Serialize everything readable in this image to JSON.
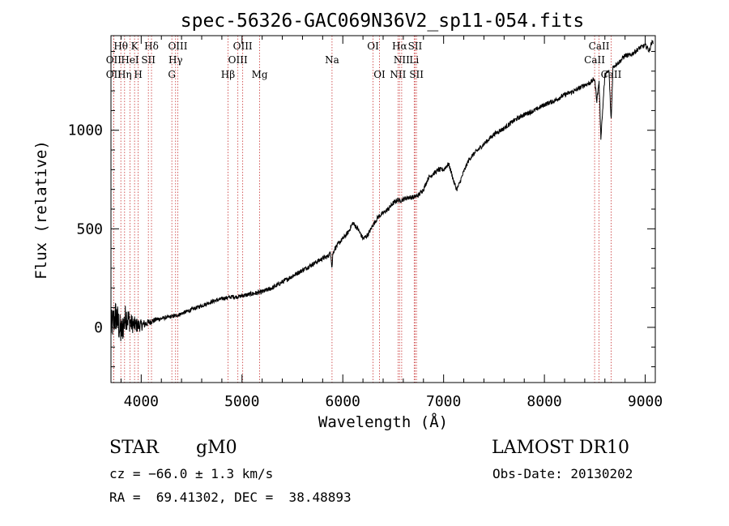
{
  "chart_data": {
    "type": "line",
    "title": "spec-56326-GAC069N36V2_sp11-054.fits",
    "xlabel": "Wavelength (Å)",
    "ylabel": "Flux (relative)",
    "xlim": [
      3700,
      9100
    ],
    "ylim": [
      -280,
      1480
    ],
    "x_ticks": [
      4000,
      5000,
      6000,
      7000,
      8000,
      9000
    ],
    "y_ticks": [
      0,
      500,
      1000
    ],
    "grid": false,
    "series": [
      {
        "x": [
          3700,
          3750,
          3800,
          3850,
          3900,
          3950,
          4000,
          4050,
          4100,
          4150,
          4200,
          4250,
          4300,
          4350,
          4400,
          4450,
          4500,
          4600,
          4700,
          4800,
          4850,
          4900,
          4950,
          5000,
          5050,
          5100,
          5150,
          5200,
          5250,
          5300,
          5400,
          5500,
          5600,
          5700,
          5800,
          5850,
          5880,
          5893,
          5900,
          5920,
          5950,
          6000,
          6050,
          6100,
          6150,
          6200,
          6250,
          6300,
          6350,
          6400,
          6450,
          6500,
          6550,
          6560,
          6600,
          6650,
          6700,
          6750,
          6800,
          6850,
          6900,
          6950,
          7000,
          7050,
          7080,
          7100,
          7130,
          7150,
          7200,
          7250,
          7300,
          7400,
          7500,
          7600,
          7700,
          7800,
          7900,
          8000,
          8100,
          8200,
          8300,
          8400,
          8450,
          8498,
          8520,
          8542,
          8560,
          8600,
          8640,
          8662,
          8680,
          8700,
          8750,
          8800,
          8850,
          8900,
          8950,
          9000,
          9020,
          9040,
          9060,
          9080
        ],
        "y": [
          0,
          60,
          -30,
          60,
          20,
          10,
          10,
          20,
          30,
          40,
          45,
          50,
          55,
          60,
          70,
          80,
          90,
          110,
          130,
          145,
          150,
          155,
          155,
          160,
          165,
          170,
          175,
          180,
          190,
          200,
          230,
          260,
          290,
          320,
          350,
          360,
          380,
          300,
          370,
          400,
          420,
          450,
          480,
          530,
          500,
          450,
          470,
          520,
          560,
          580,
          600,
          630,
          650,
          640,
          650,
          660,
          660,
          670,
          700,
          760,
          780,
          800,
          800,
          830,
          780,
          740,
          700,
          720,
          790,
          850,
          880,
          930,
          980,
          1010,
          1050,
          1080,
          1100,
          1130,
          1150,
          1180,
          1200,
          1230,
          1240,
          1260,
          1150,
          1250,
          960,
          1280,
          1300,
          1050,
          1320,
          1330,
          1350,
          1380,
          1380,
          1400,
          1420,
          1430,
          1420,
          1400,
          1440,
          1450
        ],
        "noise_sigma": [
          80,
          90,
          80,
          70,
          50,
          40,
          30,
          20,
          15,
          12,
          10,
          10,
          10,
          10,
          10,
          10,
          10,
          10,
          10,
          10,
          10,
          10,
          10,
          10,
          12,
          12,
          12,
          12,
          12,
          12,
          12,
          12,
          12,
          12,
          12,
          12,
          12,
          12,
          12,
          12,
          12,
          12,
          12,
          12,
          12,
          12,
          12,
          12,
          12,
          12,
          12,
          12,
          12,
          12,
          12,
          12,
          12,
          12,
          12,
          12,
          12,
          12,
          12,
          12,
          12,
          12,
          12,
          12,
          12,
          12,
          12,
          12,
          12,
          12,
          12,
          12,
          12,
          12,
          12,
          12,
          12,
          12,
          12,
          12,
          12,
          12,
          12,
          12,
          12,
          12,
          12,
          12,
          12,
          12,
          12,
          12,
          12,
          12,
          12,
          12,
          12,
          12
        ]
      }
    ],
    "lines": [
      {
        "wl": 3727,
        "label": "OII",
        "row": 2
      },
      {
        "wl": 3727,
        "label": "OII",
        "row": 3
      },
      {
        "wl": 3798,
        "label": "Hθ",
        "row": 1
      },
      {
        "wl": 3835,
        "label": "Hη",
        "row": 3
      },
      {
        "wl": 3889,
        "label": "HeI",
        "row": 2
      },
      {
        "wl": 3934,
        "label": "K",
        "row": 1
      },
      {
        "wl": 3970,
        "label": "H",
        "row": 3
      },
      {
        "wl": 4071,
        "label": "SII",
        "row": 2
      },
      {
        "wl": 4102,
        "label": "Hδ",
        "row": 1
      },
      {
        "wl": 4304,
        "label": "G",
        "row": 3
      },
      {
        "wl": 4341,
        "label": "Hγ",
        "row": 2
      },
      {
        "wl": 4363,
        "label": "OIII",
        "row": 1
      },
      {
        "wl": 4861,
        "label": "Hβ",
        "row": 3
      },
      {
        "wl": 4959,
        "label": "OIII",
        "row": 2
      },
      {
        "wl": 5007,
        "label": "OIII",
        "row": 1
      },
      {
        "wl": 5175,
        "label": "Mg",
        "row": 3
      },
      {
        "wl": 5893,
        "label": "Na",
        "row": 2
      },
      {
        "wl": 6300,
        "label": "OI",
        "row": 1
      },
      {
        "wl": 6364,
        "label": "OI",
        "row": 3
      },
      {
        "wl": 6548,
        "label": "NII",
        "row": 3
      },
      {
        "wl": 6563,
        "label": "Hα",
        "row": 1
      },
      {
        "wl": 6584,
        "label": "NII",
        "row": 2
      },
      {
        "wl": 6708,
        "label": "Li",
        "row": 2
      },
      {
        "wl": 6717,
        "label": "SII",
        "row": 1
      },
      {
        "wl": 6731,
        "label": "SII",
        "row": 3
      },
      {
        "wl": 8498,
        "label": "CaII",
        "row": 2
      },
      {
        "wl": 8542,
        "label": "CaII",
        "row": 1
      },
      {
        "wl": 8662,
        "label": "CaII",
        "row": 3
      }
    ]
  },
  "info": {
    "class": "STAR",
    "subclass": "gM0",
    "survey": "LAMOST DR10",
    "cz": "cz = −66.0 ± 1.3 km/s",
    "obs_date": "Obs-Date: 20130202",
    "coords": "RA =  69.41302, DEC =  38.48893"
  }
}
